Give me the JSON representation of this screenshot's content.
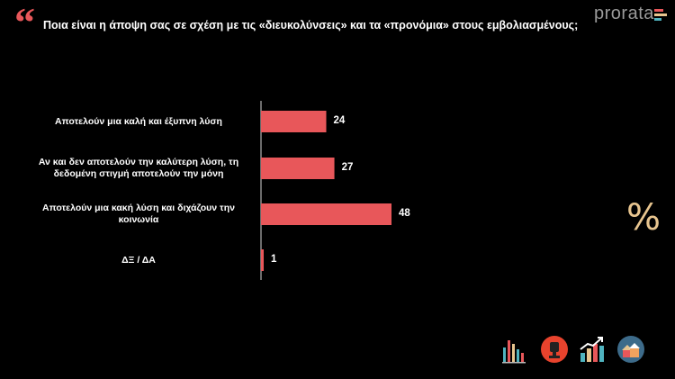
{
  "header": {
    "question": "Ποια είναι η άποψη σας σε σχέση με τις «διευκολύνσεις» και τα «προνόμια» στους εμβολιασμένους;",
    "logo_text": "prorata"
  },
  "colors": {
    "bar": "#e8575a",
    "accent_quote": "#e8575a",
    "percent_icon": "#e8c58f",
    "axis": "#d9d9d9"
  },
  "icons": [
    "quote-icon",
    "percent-icon",
    "bar-chart-icon",
    "trophy-icon",
    "growth-chart-icon",
    "houses-icon"
  ],
  "chart_data": {
    "type": "bar",
    "orientation": "horizontal",
    "categories": [
      [
        "Αποτελούν μια καλή και έξυπνη λύση"
      ],
      [
        "Αν και δεν αποτελούν την καλύτερη λύση, τη",
        "δεδομένη στιγμή αποτελούν την μόνη"
      ],
      [
        "Αποτελούν μια κακή λύση και διχάζουν την",
        "κοινωνία"
      ],
      [
        "ΔΞ / ΔΑ"
      ]
    ],
    "values": [
      24,
      27,
      48,
      1
    ],
    "value_labels": [
      "24",
      "27",
      "48",
      "1"
    ],
    "xlim": [
      0,
      48
    ],
    "unit_symbol": "%",
    "grid": false,
    "legend": "none"
  }
}
